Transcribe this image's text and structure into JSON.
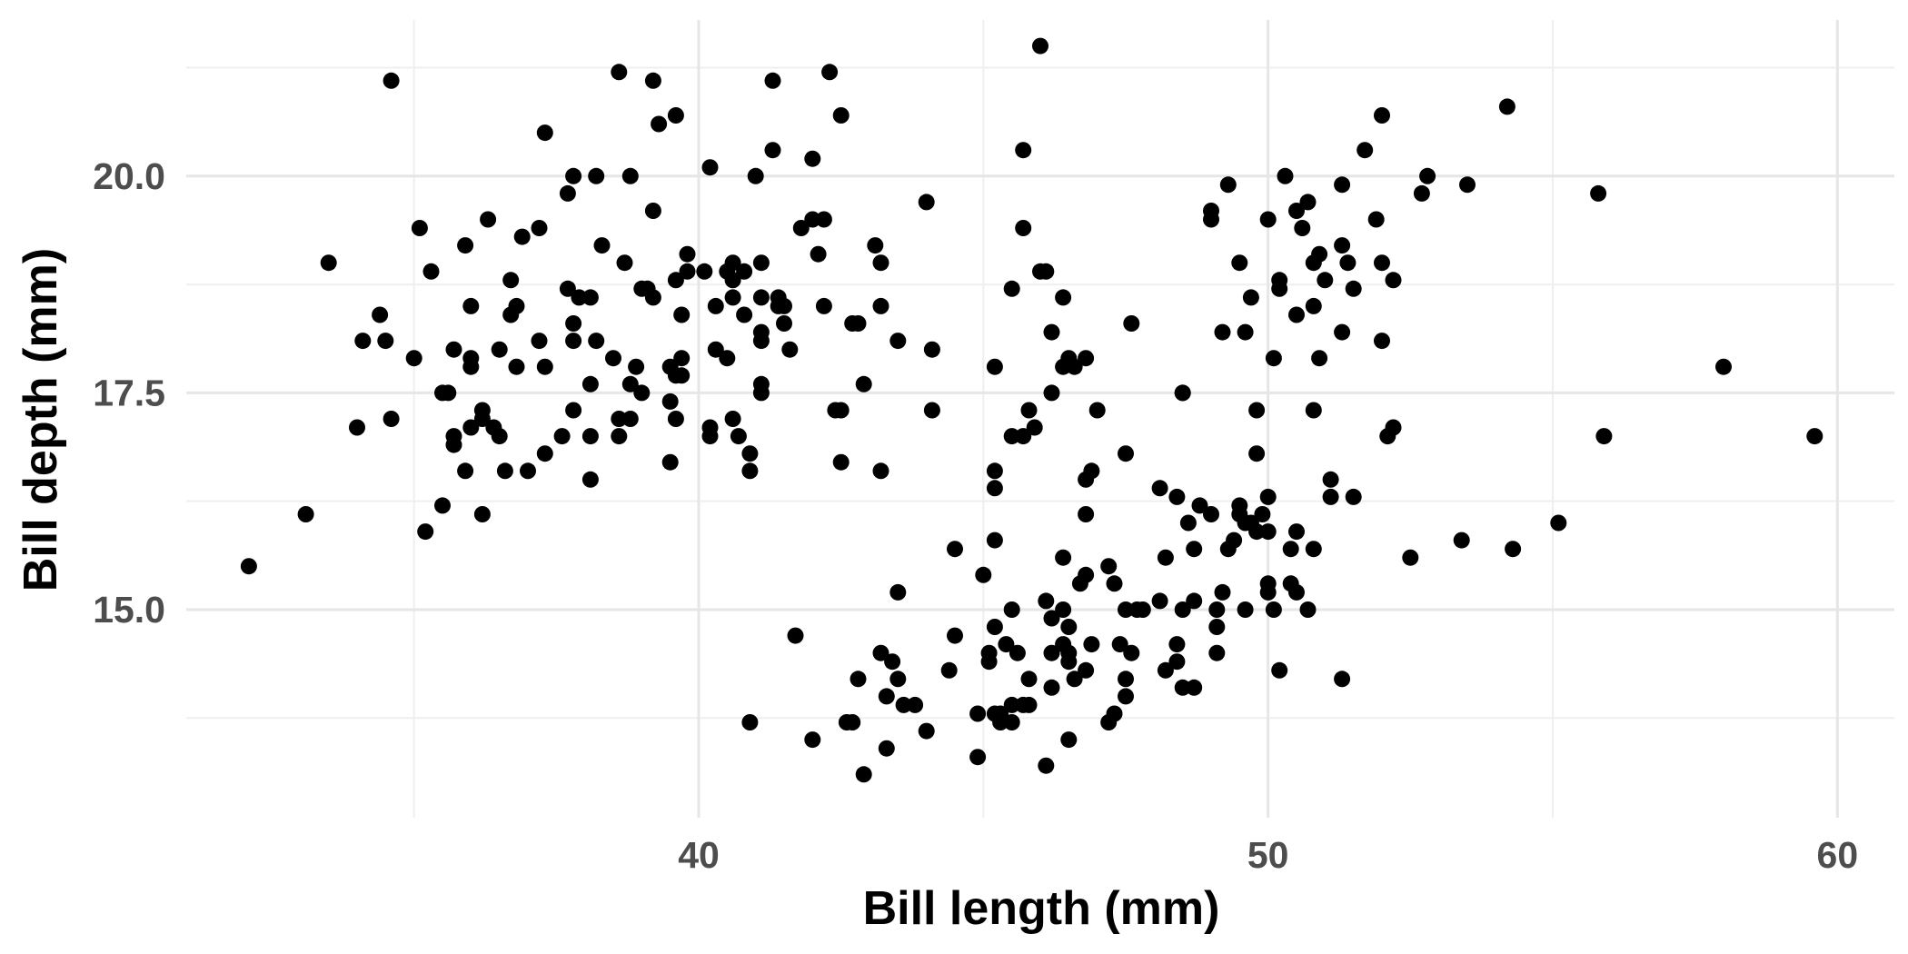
{
  "chart_data": {
    "type": "scatter",
    "title": "",
    "xlabel": "Bill length (mm)",
    "ylabel": "Bill depth (mm)",
    "xlim": [
      31.0,
      61.0
    ],
    "ylim": [
      12.6,
      21.8
    ],
    "x_ticks": [
      40,
      50,
      60
    ],
    "x_tick_labels": [
      "40",
      "50",
      "60"
    ],
    "y_ticks": [
      15.0,
      17.5,
      20.0
    ],
    "y_tick_labels": [
      "15.0",
      "17.5",
      "20.0"
    ],
    "x_minor_ticks": [
      35,
      45,
      55
    ],
    "y_minor_ticks": [
      13.75,
      16.25,
      18.75,
      21.25
    ],
    "grid": true,
    "point_color": "#000000",
    "points": [
      [
        32.1,
        15.5
      ],
      [
        33.1,
        16.1
      ],
      [
        33.5,
        19.0
      ],
      [
        34.1,
        18.1
      ],
      [
        34.4,
        18.4
      ],
      [
        34.5,
        18.1
      ],
      [
        34.0,
        17.1
      ],
      [
        34.6,
        17.2
      ],
      [
        34.6,
        21.1
      ],
      [
        35.0,
        17.9
      ],
      [
        35.1,
        19.4
      ],
      [
        35.2,
        15.9
      ],
      [
        35.3,
        18.9
      ],
      [
        35.5,
        17.5
      ],
      [
        35.5,
        16.2
      ],
      [
        35.6,
        17.5
      ],
      [
        35.7,
        17.0
      ],
      [
        35.7,
        16.9
      ],
      [
        35.7,
        18.0
      ],
      [
        35.9,
        19.2
      ],
      [
        35.9,
        16.6
      ],
      [
        36.0,
        17.9
      ],
      [
        36.0,
        17.8
      ],
      [
        36.0,
        17.1
      ],
      [
        36.0,
        18.5
      ],
      [
        36.2,
        17.3
      ],
      [
        36.2,
        17.2
      ],
      [
        36.2,
        16.1
      ],
      [
        36.3,
        19.5
      ],
      [
        36.4,
        17.1
      ],
      [
        36.5,
        18.0
      ],
      [
        36.5,
        17.0
      ],
      [
        36.6,
        16.6
      ],
      [
        36.7,
        18.8
      ],
      [
        36.8,
        18.5
      ],
      [
        36.8,
        17.8
      ],
      [
        36.7,
        18.4
      ],
      [
        36.9,
        19.3
      ],
      [
        37.0,
        16.6
      ],
      [
        37.2,
        18.1
      ],
      [
        37.2,
        19.4
      ],
      [
        37.3,
        17.8
      ],
      [
        37.3,
        16.8
      ],
      [
        37.3,
        20.5
      ],
      [
        37.6,
        17.0
      ],
      [
        37.7,
        19.8
      ],
      [
        37.7,
        18.7
      ],
      [
        37.8,
        18.3
      ],
      [
        37.8,
        17.3
      ],
      [
        37.8,
        18.1
      ],
      [
        37.8,
        20.0
      ],
      [
        37.9,
        18.6
      ],
      [
        38.1,
        18.6
      ],
      [
        38.1,
        17.0
      ],
      [
        38.1,
        16.5
      ],
      [
        38.1,
        17.6
      ],
      [
        38.2,
        18.1
      ],
      [
        38.2,
        20.0
      ],
      [
        38.3,
        19.2
      ],
      [
        38.5,
        17.9
      ],
      [
        38.6,
        21.2
      ],
      [
        38.6,
        17.2
      ],
      [
        38.6,
        17.0
      ],
      [
        38.7,
        19.0
      ],
      [
        38.8,
        17.2
      ],
      [
        38.8,
        17.6
      ],
      [
        38.8,
        20.0
      ],
      [
        38.9,
        17.8
      ],
      [
        39.0,
        17.5
      ],
      [
        39.0,
        18.7
      ],
      [
        39.1,
        18.7
      ],
      [
        39.2,
        18.6
      ],
      [
        39.2,
        19.6
      ],
      [
        39.2,
        21.1
      ],
      [
        39.3,
        20.6
      ],
      [
        39.5,
        16.7
      ],
      [
        39.5,
        17.4
      ],
      [
        39.5,
        17.8
      ],
      [
        39.6,
        17.7
      ],
      [
        39.6,
        17.2
      ],
      [
        39.6,
        18.8
      ],
      [
        39.6,
        20.7
      ],
      [
        39.7,
        17.9
      ],
      [
        39.7,
        18.4
      ],
      [
        39.7,
        17.7
      ],
      [
        39.8,
        19.1
      ],
      [
        39.8,
        18.9
      ],
      [
        40.1,
        18.9
      ],
      [
        40.2,
        17.0
      ],
      [
        40.2,
        17.1
      ],
      [
        40.2,
        20.1
      ],
      [
        40.3,
        18.0
      ],
      [
        40.3,
        18.5
      ],
      [
        40.5,
        17.9
      ],
      [
        40.5,
        18.9
      ],
      [
        40.6,
        18.6
      ],
      [
        40.6,
        18.8
      ],
      [
        40.6,
        19.0
      ],
      [
        40.6,
        17.2
      ],
      [
        40.7,
        17.0
      ],
      [
        40.8,
        18.4
      ],
      [
        40.8,
        18.9
      ],
      [
        40.9,
        16.8
      ],
      [
        40.9,
        16.6
      ],
      [
        41.0,
        20.0
      ],
      [
        41.1,
        17.6
      ],
      [
        41.1,
        18.1
      ],
      [
        41.1,
        18.2
      ],
      [
        41.1,
        17.5
      ],
      [
        41.1,
        19.0
      ],
      [
        41.1,
        18.6
      ],
      [
        41.3,
        20.3
      ],
      [
        41.3,
        21.1
      ],
      [
        41.4,
        18.5
      ],
      [
        41.4,
        18.6
      ],
      [
        41.5,
        18.3
      ],
      [
        41.5,
        18.5
      ],
      [
        41.6,
        18.0
      ],
      [
        41.8,
        19.4
      ],
      [
        42.0,
        20.2
      ],
      [
        42.0,
        19.5
      ],
      [
        42.1,
        19.1
      ],
      [
        42.2,
        19.5
      ],
      [
        42.2,
        18.5
      ],
      [
        42.3,
        21.2
      ],
      [
        42.5,
        20.7
      ],
      [
        42.4,
        17.3
      ],
      [
        42.5,
        17.3
      ],
      [
        42.5,
        16.7
      ],
      [
        42.8,
        18.3
      ],
      [
        42.9,
        17.6
      ],
      [
        42.7,
        18.3
      ],
      [
        43.2,
        19.0
      ],
      [
        43.2,
        18.5
      ],
      [
        43.1,
        19.2
      ],
      [
        43.2,
        16.6
      ],
      [
        43.5,
        18.1
      ],
      [
        44.0,
        19.7
      ],
      [
        44.1,
        18.0
      ],
      [
        44.1,
        17.3
      ],
      [
        40.9,
        13.7
      ],
      [
        41.7,
        14.7
      ],
      [
        42.0,
        13.5
      ],
      [
        42.6,
        13.7
      ],
      [
        42.7,
        13.7
      ],
      [
        42.8,
        14.2
      ],
      [
        42.9,
        13.1
      ],
      [
        43.2,
        14.5
      ],
      [
        43.3,
        13.4
      ],
      [
        43.3,
        14.0
      ],
      [
        43.4,
        14.4
      ],
      [
        43.5,
        14.2
      ],
      [
        43.5,
        15.2
      ],
      [
        43.6,
        13.9
      ],
      [
        43.8,
        13.9
      ],
      [
        44.0,
        13.6
      ],
      [
        44.4,
        14.3
      ],
      [
        44.5,
        14.7
      ],
      [
        44.5,
        15.7
      ],
      [
        44.9,
        13.8
      ],
      [
        44.9,
        13.3
      ],
      [
        45.0,
        15.4
      ],
      [
        45.1,
        14.5
      ],
      [
        45.1,
        14.4
      ],
      [
        45.2,
        13.8
      ],
      [
        45.2,
        14.8
      ],
      [
        45.2,
        15.8
      ],
      [
        45.2,
        16.4
      ],
      [
        45.2,
        16.6
      ],
      [
        45.2,
        17.8
      ],
      [
        45.3,
        13.8
      ],
      [
        45.3,
        13.7
      ],
      [
        45.4,
        14.6
      ],
      [
        45.5,
        13.9
      ],
      [
        45.5,
        13.7
      ],
      [
        45.5,
        15.0
      ],
      [
        45.5,
        17.0
      ],
      [
        45.5,
        18.7
      ],
      [
        45.6,
        14.5
      ],
      [
        45.7,
        13.9
      ],
      [
        45.7,
        17.0
      ],
      [
        45.8,
        13.9
      ],
      [
        45.8,
        14.2
      ],
      [
        45.8,
        17.3
      ],
      [
        45.7,
        19.4
      ],
      [
        45.7,
        20.3
      ],
      [
        45.9,
        17.1
      ],
      [
        46.1,
        13.2
      ],
      [
        46.1,
        15.1
      ],
      [
        46.2,
        14.1
      ],
      [
        46.2,
        14.5
      ],
      [
        46.2,
        14.9
      ],
      [
        46.2,
        17.5
      ],
      [
        46.2,
        18.2
      ],
      [
        46.4,
        14.6
      ],
      [
        46.4,
        15.0
      ],
      [
        46.4,
        15.6
      ],
      [
        46.4,
        17.8
      ],
      [
        46.5,
        14.4
      ],
      [
        46.5,
        14.5
      ],
      [
        46.5,
        14.8
      ],
      [
        46.5,
        17.9
      ],
      [
        46.6,
        14.2
      ],
      [
        46.6,
        17.8
      ],
      [
        46.7,
        15.3
      ],
      [
        46.8,
        14.3
      ],
      [
        46.8,
        15.4
      ],
      [
        46.8,
        16.1
      ],
      [
        46.8,
        16.5
      ],
      [
        46.8,
        17.9
      ],
      [
        46.9,
        14.6
      ],
      [
        46.9,
        16.6
      ],
      [
        47.0,
        17.3
      ],
      [
        46.0,
        18.9
      ],
      [
        46.1,
        18.9
      ],
      [
        46.0,
        21.5
      ],
      [
        46.4,
        18.6
      ],
      [
        46.5,
        13.5
      ],
      [
        47.2,
        13.7
      ],
      [
        47.2,
        15.5
      ],
      [
        47.3,
        13.8
      ],
      [
        47.3,
        15.3
      ],
      [
        47.4,
        14.6
      ],
      [
        47.5,
        14.0
      ],
      [
        47.5,
        14.2
      ],
      [
        47.5,
        15.0
      ],
      [
        47.5,
        16.8
      ],
      [
        47.6,
        14.5
      ],
      [
        47.6,
        18.3
      ],
      [
        47.7,
        15.0
      ],
      [
        47.8,
        15.0
      ],
      [
        48.1,
        15.1
      ],
      [
        48.1,
        16.4
      ],
      [
        48.2,
        14.3
      ],
      [
        48.2,
        15.6
      ],
      [
        48.4,
        14.4
      ],
      [
        48.4,
        14.6
      ],
      [
        48.4,
        16.3
      ],
      [
        48.5,
        14.1
      ],
      [
        48.5,
        15.0
      ],
      [
        48.5,
        17.5
      ],
      [
        48.6,
        16.0
      ],
      [
        48.7,
        14.1
      ],
      [
        48.7,
        15.1
      ],
      [
        48.7,
        15.7
      ],
      [
        48.8,
        16.2
      ],
      [
        49.0,
        16.1
      ],
      [
        49.1,
        14.5
      ],
      [
        49.1,
        14.8
      ],
      [
        49.1,
        15.0
      ],
      [
        49.2,
        15.2
      ],
      [
        49.3,
        15.7
      ],
      [
        49.4,
        15.8
      ],
      [
        49.5,
        16.1
      ],
      [
        49.5,
        16.2
      ],
      [
        49.6,
        15.0
      ],
      [
        49.6,
        16.0
      ],
      [
        49.7,
        16.0
      ],
      [
        49.8,
        15.9
      ],
      [
        49.8,
        16.8
      ],
      [
        49.9,
        16.1
      ],
      [
        50.0,
        15.2
      ],
      [
        50.0,
        15.3
      ],
      [
        50.0,
        15.9
      ],
      [
        50.0,
        16.3
      ],
      [
        50.1,
        15.0
      ],
      [
        50.2,
        14.3
      ],
      [
        50.4,
        15.3
      ],
      [
        50.4,
        15.7
      ],
      [
        50.5,
        15.2
      ],
      [
        50.5,
        15.9
      ],
      [
        50.7,
        15.0
      ],
      [
        50.8,
        15.7
      ],
      [
        51.1,
        16.3
      ],
      [
        51.1,
        16.5
      ],
      [
        51.3,
        14.2
      ],
      [
        51.5,
        16.3
      ],
      [
        52.5,
        15.6
      ],
      [
        53.4,
        15.8
      ],
      [
        54.3,
        15.7
      ],
      [
        55.1,
        16.0
      ],
      [
        55.9,
        17.0
      ],
      [
        59.6,
        17.0
      ],
      [
        48.5,
        17.5
      ],
      [
        49.0,
        19.5
      ],
      [
        49.0,
        19.6
      ],
      [
        49.2,
        18.2
      ],
      [
        49.3,
        19.9
      ],
      [
        49.5,
        19.0
      ],
      [
        49.6,
        18.2
      ],
      [
        49.7,
        18.6
      ],
      [
        49.8,
        17.3
      ],
      [
        50.0,
        19.5
      ],
      [
        50.1,
        17.9
      ],
      [
        50.2,
        18.7
      ],
      [
        50.2,
        18.8
      ],
      [
        50.3,
        20.0
      ],
      [
        50.5,
        18.4
      ],
      [
        50.5,
        19.6
      ],
      [
        50.6,
        19.4
      ],
      [
        50.7,
        19.7
      ],
      [
        50.8,
        18.5
      ],
      [
        50.8,
        19.0
      ],
      [
        50.8,
        17.3
      ],
      [
        50.9,
        17.9
      ],
      [
        50.9,
        19.1
      ],
      [
        51.0,
        18.8
      ],
      [
        51.3,
        18.2
      ],
      [
        51.3,
        19.2
      ],
      [
        51.3,
        19.9
      ],
      [
        51.4,
        19.0
      ],
      [
        51.5,
        18.7
      ],
      [
        51.7,
        20.3
      ],
      [
        51.9,
        19.5
      ],
      [
        52.0,
        18.1
      ],
      [
        52.0,
        19.0
      ],
      [
        52.1,
        17.0
      ],
      [
        52.2,
        17.1
      ],
      [
        52.2,
        18.8
      ],
      [
        52.0,
        20.7
      ],
      [
        52.7,
        19.8
      ],
      [
        52.8,
        20.0
      ],
      [
        53.5,
        19.9
      ],
      [
        54.2,
        20.8
      ],
      [
        55.8,
        19.8
      ],
      [
        58.0,
        17.8
      ]
    ]
  }
}
